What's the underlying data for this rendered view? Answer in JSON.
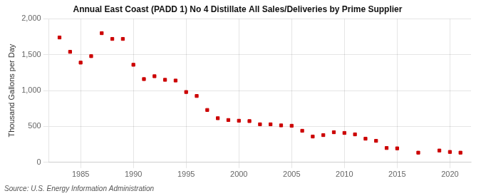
{
  "chart_data": {
    "type": "scatter",
    "title": "Annual East Coast (PADD 1) No 4 Distillate All Sales/Deliveries by Prime Supplier",
    "ylabel": "Thousand Gallons per Day",
    "source": "Source: U.S. Energy Information Administration",
    "x": [
      1983,
      1984,
      1985,
      1986,
      1987,
      1988,
      1989,
      1990,
      1991,
      1992,
      1993,
      1994,
      1995,
      1996,
      1997,
      1998,
      1999,
      2000,
      2001,
      2002,
      2003,
      2004,
      2005,
      2006,
      2007,
      2008,
      2009,
      2010,
      2011,
      2012,
      2013,
      2014,
      2015,
      2017,
      2019,
      2020,
      2021
    ],
    "values": [
      1740,
      1540,
      1390,
      1480,
      1800,
      1720,
      1720,
      1360,
      1160,
      1200,
      1150,
      1140,
      980,
      925,
      730,
      615,
      590,
      580,
      575,
      530,
      530,
      515,
      510,
      440,
      360,
      380,
      420,
      410,
      390,
      330,
      300,
      200,
      195,
      135,
      165,
      145,
      135
    ],
    "color": "#cc0000",
    "marker": "square",
    "xlim": [
      1982,
      2022
    ],
    "xticks": [
      1985,
      1990,
      1995,
      2000,
      2005,
      2010,
      2015,
      2020
    ],
    "ylim": [
      0,
      2000
    ],
    "yticks": [
      0,
      500,
      {
        "value": 1000,
        "label": "1,000"
      },
      {
        "value": 1500,
        "label": "1,500"
      },
      {
        "value": 2000,
        "label": "2,000"
      }
    ],
    "grid": true
  }
}
